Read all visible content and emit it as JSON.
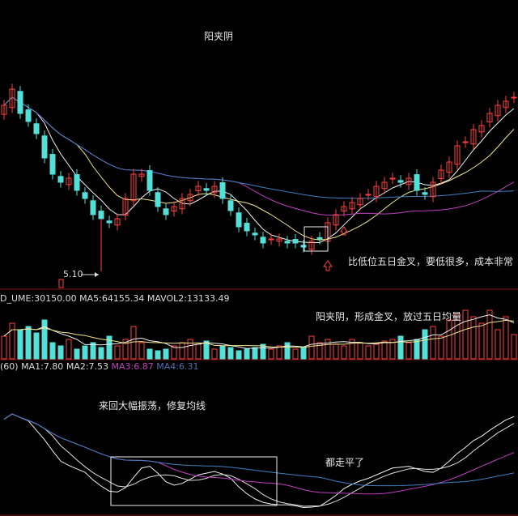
{
  "annotations": {
    "title": "阳夹阴",
    "low_label": "5.10",
    "main_note": "比低位五日金叉，要低很多，成本非常",
    "volume_note": "阳夹阴，形成金叉，放过五日均量",
    "lower_note": "来回大幅振荡，修复均线",
    "flat_note": "都走平了"
  },
  "volume_header": {
    "volume": "D_UME:30150.00",
    "ma5": "MA5:64155.34",
    "mavol2": "MAVOL2:13133.49"
  },
  "indicator_header": {
    "prefix": "(60)",
    "ma1": "MA1:7.80",
    "ma2": "MA2:7.53",
    "ma3": "MA3:6.87",
    "ma4": "MA4:6.31"
  },
  "colors": {
    "up": "#ff4040",
    "down": "#54e0d8",
    "ma_white": "#f0f0f0",
    "ma_yellow": "#f0e68c",
    "ma_magenta": "#c040c0",
    "ma_blue": "#4080c0",
    "separator": "#801818"
  },
  "chart_data": {
    "type": "candlestick",
    "close": [
      8.79,
      9.15,
      8.61,
      8.43,
      8.16,
      7.62,
      7.26,
      7.08,
      7.17,
      6.9,
      6.72,
      6.36,
      6.27,
      6.18,
      6.27,
      6.72,
      7.26,
      7.26,
      6.9,
      6.54,
      6.36,
      6.54,
      6.72,
      6.81,
      6.99,
      6.9,
      6.99,
      6.72,
      6.45,
      6.09,
      6.0,
      5.91,
      5.73,
      5.82,
      5.82,
      5.73,
      5.73,
      5.64,
      5.77,
      5.82,
      6.18,
      6.36,
      6.54,
      6.63,
      6.72,
      6.81,
      6.99,
      7.08,
      7.17,
      7.08,
      7.17,
      6.9,
      6.81,
      7.08,
      7.35,
      7.53,
      7.89,
      7.98,
      8.25,
      8.34,
      8.61,
      8.79,
      8.88,
      8.97
    ],
    "volume": [
      14,
      22,
      18,
      20,
      16,
      24,
      10,
      8,
      12,
      6,
      8,
      10,
      7,
      14,
      8,
      12,
      20,
      10,
      6,
      5,
      6,
      8,
      10,
      12,
      9,
      11,
      6,
      8,
      7,
      5,
      6,
      7,
      9,
      6,
      8,
      10,
      6,
      7,
      14,
      10,
      12,
      9,
      8,
      12,
      10,
      8,
      9,
      11,
      12,
      14,
      10,
      12,
      18,
      20,
      14,
      24,
      28,
      30,
      26,
      22,
      30,
      18,
      26,
      15
    ],
    "low_point": 5.1
  }
}
